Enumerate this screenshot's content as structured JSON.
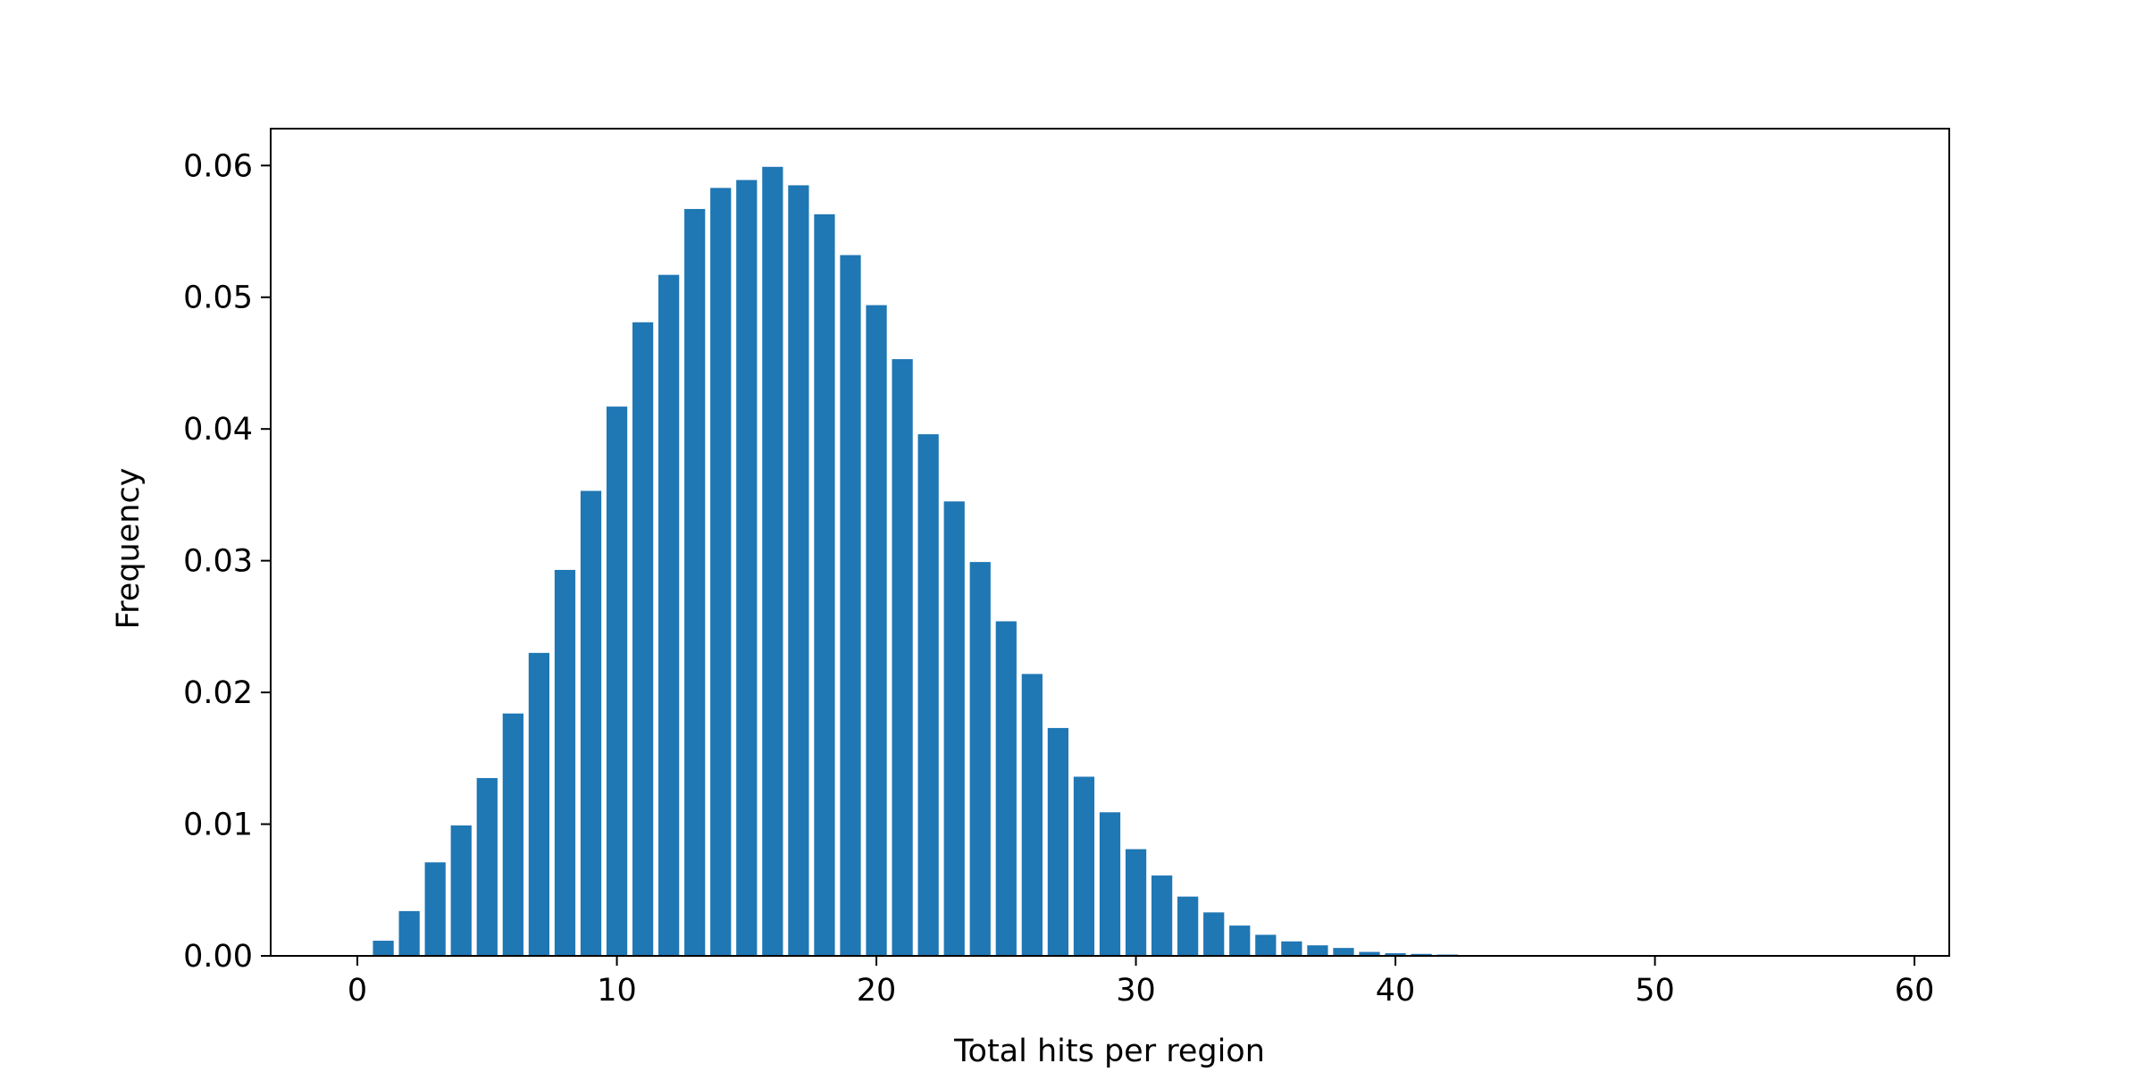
{
  "chart_data": {
    "type": "bar",
    "xlabel": "Total hits per region",
    "ylabel": "Frequency",
    "x": [
      0,
      1,
      2,
      3,
      4,
      5,
      6,
      7,
      8,
      9,
      10,
      11,
      12,
      13,
      14,
      15,
      16,
      17,
      18,
      19,
      20,
      21,
      22,
      23,
      24,
      25,
      26,
      27,
      28,
      29,
      30,
      31,
      32,
      33,
      34,
      35,
      36,
      37,
      38,
      39,
      40,
      41,
      42,
      43,
      44,
      45,
      46,
      47,
      48,
      49,
      50,
      51,
      52,
      53,
      54,
      55,
      56,
      57,
      58
    ],
    "values": [
      0,
      0.00115,
      0.0034,
      0.0071,
      0.0099,
      0.0135,
      0.0184,
      0.023,
      0.0293,
      0.0353,
      0.0417,
      0.0481,
      0.0517,
      0.0567,
      0.0583,
      0.0589,
      0.0599,
      0.0585,
      0.0563,
      0.0532,
      0.0494,
      0.0453,
      0.0396,
      0.0345,
      0.0299,
      0.0254,
      0.0214,
      0.0173,
      0.0136,
      0.0109,
      0.0081,
      0.0061,
      0.0045,
      0.0033,
      0.0023,
      0.0016,
      0.0011,
      0.0008,
      0.0006,
      0.0003,
      0.0002,
      0.00015,
      0.0001,
      5e-05,
      3e-05,
      0,
      0,
      0,
      0,
      0,
      0,
      0,
      0,
      0,
      0,
      0,
      0,
      0,
      0
    ],
    "color": "#1f77b4",
    "xlim": [
      -3.34,
      61.34
    ],
    "xticks": [
      0,
      10,
      20,
      30,
      40,
      50,
      60
    ],
    "ylim": [
      0,
      0.0628
    ],
    "yticks": [
      {
        "value": 0,
        "label": "0.00"
      },
      0.01,
      0.02,
      0.03,
      0.04,
      0.05,
      0.06
    ],
    "grid": false
  }
}
